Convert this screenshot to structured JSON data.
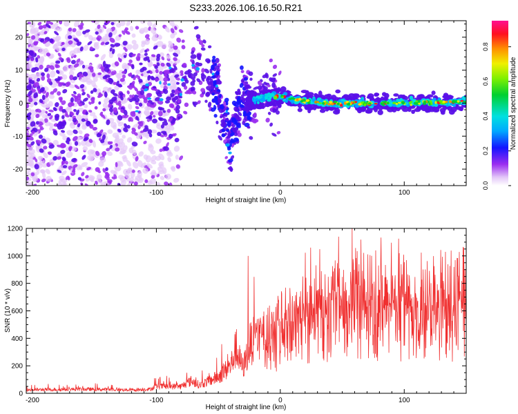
{
  "title": "S233.2026.106.16.50.R21",
  "colormap": [
    "#ffffff",
    "#e4c8f8",
    "#9a2df0",
    "#5a10e8",
    "#1414ff",
    "#00a8ff",
    "#00e0e0",
    "#00d030",
    "#60f000",
    "#f0f000",
    "#ff9000",
    "#ff1020",
    "#ff1090"
  ],
  "chart_data": [
    {
      "type": "heatmap",
      "name": "spectrogram",
      "xlabel": "Height of straight line (km)",
      "ylabel": "Frequency (Hz)",
      "xlim": [
        -205,
        150
      ],
      "ylim": [
        -25,
        25
      ],
      "x_ticks": [
        -200,
        -100,
        0,
        100
      ],
      "x_tick_labels": [
        "-200",
        "-100",
        "0",
        "100"
      ],
      "y_ticks": [
        -20,
        -10,
        0,
        10,
        20
      ],
      "y_tick_labels": [
        "-20",
        "-10",
        "0",
        "10",
        "20"
      ],
      "colorbar": {
        "label": "Normalized spectral amplitude",
        "range": [
          0,
          0.95
        ],
        "ticks": [
          0.0,
          0.2,
          0.4,
          0.6,
          0.8
        ],
        "tick_labels": [
          "0.0",
          "0.2",
          "0.4",
          "0.6",
          "0.8"
        ]
      },
      "ridge": {
        "x": [
          -205,
          -160,
          -120,
          -100,
          -80,
          -70,
          -60,
          -50,
          -45,
          -40,
          -35,
          -30,
          -20,
          -10,
          0,
          20,
          50,
          100,
          150
        ],
        "y": [
          2,
          2,
          3,
          3,
          5,
          10,
          10,
          4,
          -5,
          -12,
          -3,
          0,
          1,
          2,
          2,
          0.5,
          0,
          0,
          0.5
        ]
      }
    },
    {
      "type": "line",
      "name": "snr",
      "xlabel": "Height of straight line (km)",
      "ylabel": "SNR (10 * v/v)",
      "xlim": [
        -205,
        150
      ],
      "ylim": [
        0,
        1200
      ],
      "x_ticks": [
        -200,
        -100,
        0,
        100
      ],
      "x_tick_labels": [
        "-200",
        "-100",
        "0",
        "100"
      ],
      "y_ticks": [
        0,
        200,
        400,
        600,
        800,
        1000,
        1200
      ],
      "y_tick_labels": [
        "0",
        "200",
        "400",
        "600",
        "800",
        "1000",
        "1200"
      ],
      "color": "#f03030",
      "envelope": {
        "x": [
          -205,
          -160,
          -120,
          -105,
          -100,
          -80,
          -72,
          -65,
          -50,
          -40,
          -36,
          -30,
          -25,
          -20,
          -10,
          0,
          10,
          20,
          40,
          60,
          80,
          100,
          120,
          140,
          150
        ],
        "y": [
          25,
          30,
          25,
          30,
          50,
          50,
          90,
          60,
          120,
          200,
          320,
          180,
          350,
          400,
          420,
          480,
          520,
          600,
          620,
          640,
          650,
          640,
          600,
          650,
          680
        ]
      },
      "peaks": [
        {
          "x": -26,
          "y": 1000
        },
        {
          "x": 47,
          "y": 1140
        },
        {
          "x": 58,
          "y": 1200
        },
        {
          "x": 148,
          "y": 1060
        }
      ]
    }
  ]
}
